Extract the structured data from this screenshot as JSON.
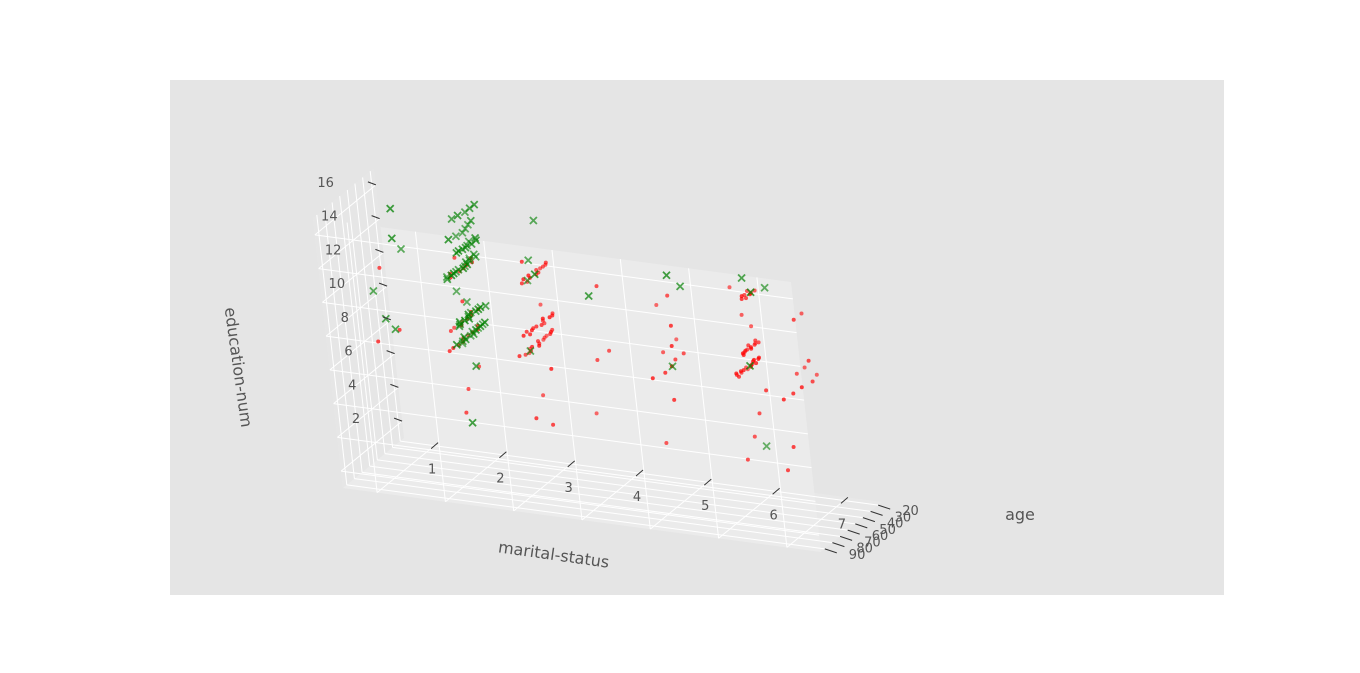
{
  "chart_data": {
    "type": "scatter",
    "projection": "3d",
    "style": "ggplot",
    "grid": true,
    "legend": "none",
    "axes": {
      "x": {
        "label": "marital-status",
        "ticks": [
          "1",
          "2",
          "3",
          "4",
          "5",
          "6",
          "7"
        ],
        "range": [
          0.5,
          7.5
        ]
      },
      "y": {
        "label": "age",
        "ticks": [
          "20",
          "30",
          "40",
          "50",
          "60",
          "70",
          "80",
          "90"
        ],
        "range": [
          15,
          95
        ]
      },
      "z": {
        "label": "education-num",
        "ticks": [
          "2",
          "4",
          "6",
          "8",
          "10",
          "12",
          "14",
          "16"
        ],
        "range": [
          1,
          17
        ]
      }
    },
    "series": [
      {
        "marker": "o",
        "color": "#ff0000",
        "points": [
          [
            2,
            30,
            9
          ],
          [
            2,
            35,
            9
          ],
          [
            2,
            40,
            9
          ],
          [
            2,
            45,
            9
          ],
          [
            2,
            50,
            9
          ],
          [
            2,
            55,
            9
          ],
          [
            2,
            60,
            9
          ],
          [
            2,
            65,
            9
          ],
          [
            2,
            70,
            9
          ],
          [
            2,
            30,
            10
          ],
          [
            2,
            35,
            10
          ],
          [
            2,
            40,
            10
          ],
          [
            2,
            45,
            10
          ],
          [
            2,
            50,
            10
          ],
          [
            2,
            55,
            10
          ],
          [
            2,
            60,
            10
          ],
          [
            2,
            65,
            10
          ],
          [
            2,
            30,
            13
          ],
          [
            2,
            35,
            13
          ],
          [
            2,
            40,
            13
          ],
          [
            2,
            45,
            13
          ],
          [
            2,
            50,
            13
          ],
          [
            2,
            55,
            13
          ],
          [
            2,
            60,
            13
          ],
          [
            2,
            40,
            7
          ],
          [
            2,
            50,
            6
          ],
          [
            2,
            60,
            5
          ],
          [
            2,
            45,
            11
          ],
          [
            2,
            55,
            14
          ],
          [
            3,
            22,
            9
          ],
          [
            3,
            25,
            9
          ],
          [
            3,
            28,
            9
          ],
          [
            3,
            31,
            9
          ],
          [
            3,
            34,
            9
          ],
          [
            3,
            37,
            9
          ],
          [
            3,
            40,
            9
          ],
          [
            3,
            43,
            9
          ],
          [
            3,
            46,
            9
          ],
          [
            3,
            49,
            9
          ],
          [
            3,
            52,
            9
          ],
          [
            3,
            55,
            9
          ],
          [
            3,
            58,
            9
          ],
          [
            3,
            61,
            9
          ],
          [
            3,
            64,
            9
          ],
          [
            3,
            22,
            10
          ],
          [
            3,
            25,
            10
          ],
          [
            3,
            28,
            10
          ],
          [
            3,
            31,
            10
          ],
          [
            3,
            34,
            10
          ],
          [
            3,
            37,
            10
          ],
          [
            3,
            40,
            10
          ],
          [
            3,
            43,
            10
          ],
          [
            3,
            46,
            10
          ],
          [
            3,
            49,
            10
          ],
          [
            3,
            52,
            10
          ],
          [
            3,
            55,
            10
          ],
          [
            3,
            58,
            10
          ],
          [
            3,
            22,
            13
          ],
          [
            3,
            25,
            13
          ],
          [
            3,
            28,
            13
          ],
          [
            3,
            31,
            13
          ],
          [
            3,
            34,
            13
          ],
          [
            3,
            37,
            13
          ],
          [
            3,
            40,
            13
          ],
          [
            3,
            43,
            13
          ],
          [
            3,
            46,
            13
          ],
          [
            3,
            49,
            13
          ],
          [
            3,
            52,
            13
          ],
          [
            3,
            55,
            13
          ],
          [
            3,
            30,
            7
          ],
          [
            3,
            45,
            6
          ],
          [
            3,
            55,
            5
          ],
          [
            3,
            35,
            11
          ],
          [
            3,
            48,
            14
          ],
          [
            3,
            38,
            4
          ],
          [
            5,
            30,
            9
          ],
          [
            5,
            40,
            9
          ],
          [
            5,
            50,
            9
          ],
          [
            5,
            60,
            9
          ],
          [
            5,
            70,
            9
          ],
          [
            5,
            35,
            10
          ],
          [
            5,
            45,
            10
          ],
          [
            5,
            55,
            10
          ],
          [
            5,
            45,
            13
          ],
          [
            5,
            60,
            13
          ],
          [
            5,
            50,
            7
          ],
          [
            5,
            65,
            5
          ],
          [
            5,
            40,
            11
          ],
          [
            6,
            22,
            9
          ],
          [
            6,
            24,
            9
          ],
          [
            6,
            26,
            9
          ],
          [
            6,
            28,
            9
          ],
          [
            6,
            30,
            9
          ],
          [
            6,
            32,
            9
          ],
          [
            6,
            34,
            9
          ],
          [
            6,
            36,
            9
          ],
          [
            6,
            38,
            9
          ],
          [
            6,
            40,
            9
          ],
          [
            6,
            42,
            9
          ],
          [
            6,
            44,
            9
          ],
          [
            6,
            46,
            9
          ],
          [
            6,
            48,
            9
          ],
          [
            6,
            50,
            9
          ],
          [
            6,
            52,
            9
          ],
          [
            6,
            22,
            10
          ],
          [
            6,
            24,
            10
          ],
          [
            6,
            26,
            10
          ],
          [
            6,
            28,
            10
          ],
          [
            6,
            30,
            10
          ],
          [
            6,
            32,
            10
          ],
          [
            6,
            34,
            10
          ],
          [
            6,
            36,
            10
          ],
          [
            6,
            38,
            10
          ],
          [
            6,
            40,
            10
          ],
          [
            6,
            42,
            10
          ],
          [
            6,
            44,
            10
          ],
          [
            6,
            22,
            13
          ],
          [
            6,
            24,
            13
          ],
          [
            6,
            26,
            13
          ],
          [
            6,
            28,
            13
          ],
          [
            6,
            30,
            13
          ],
          [
            6,
            32,
            13
          ],
          [
            6,
            34,
            13
          ],
          [
            6,
            36,
            13
          ],
          [
            6,
            20,
            7
          ],
          [
            6,
            30,
            6
          ],
          [
            6,
            40,
            5
          ],
          [
            6,
            50,
            4
          ],
          [
            6,
            26,
            11
          ],
          [
            6,
            35,
            12
          ],
          [
            6,
            45,
            14
          ],
          [
            7,
            35,
            9
          ],
          [
            7,
            45,
            9
          ],
          [
            7,
            55,
            9
          ],
          [
            7,
            65,
            9
          ],
          [
            7,
            75,
            9
          ],
          [
            7,
            40,
            10
          ],
          [
            7,
            50,
            10
          ],
          [
            7,
            60,
            10
          ],
          [
            7,
            45,
            13
          ],
          [
            7,
            55,
            13
          ],
          [
            7,
            70,
            6
          ],
          [
            7,
            80,
            5
          ],
          [
            1,
            50,
            9
          ],
          [
            1,
            70,
            9
          ],
          [
            1,
            60,
            13
          ],
          [
            4,
            40,
            9
          ],
          [
            4,
            55,
            9
          ],
          [
            4,
            45,
            13
          ],
          [
            4,
            60,
            6
          ]
        ]
      },
      {
        "marker": "x",
        "color": "#008000",
        "points": [
          [
            1,
            30,
            13
          ],
          [
            1,
            40,
            14
          ],
          [
            1,
            50,
            9
          ],
          [
            1,
            60,
            10
          ],
          [
            1,
            45,
            16
          ],
          [
            2,
            24,
            9
          ],
          [
            2,
            27,
            9
          ],
          [
            2,
            30,
            9
          ],
          [
            2,
            33,
            9
          ],
          [
            2,
            36,
            9
          ],
          [
            2,
            39,
            9
          ],
          [
            2,
            42,
            9
          ],
          [
            2,
            45,
            9
          ],
          [
            2,
            48,
            9
          ],
          [
            2,
            51,
            9
          ],
          [
            2,
            54,
            9
          ],
          [
            2,
            57,
            9
          ],
          [
            2,
            60,
            9
          ],
          [
            2,
            24,
            10
          ],
          [
            2,
            27,
            10
          ],
          [
            2,
            30,
            10
          ],
          [
            2,
            33,
            10
          ],
          [
            2,
            36,
            10
          ],
          [
            2,
            39,
            10
          ],
          [
            2,
            42,
            10
          ],
          [
            2,
            45,
            10
          ],
          [
            2,
            48,
            10
          ],
          [
            2,
            51,
            10
          ],
          [
            2,
            54,
            10
          ],
          [
            2,
            57,
            10
          ],
          [
            2,
            24,
            13
          ],
          [
            2,
            27,
            13
          ],
          [
            2,
            30,
            13
          ],
          [
            2,
            33,
            13
          ],
          [
            2,
            36,
            13
          ],
          [
            2,
            39,
            13
          ],
          [
            2,
            42,
            13
          ],
          [
            2,
            45,
            13
          ],
          [
            2,
            48,
            13
          ],
          [
            2,
            51,
            13
          ],
          [
            2,
            54,
            13
          ],
          [
            2,
            57,
            13
          ],
          [
            2,
            60,
            13
          ],
          [
            2,
            63,
            13
          ],
          [
            2,
            24,
            14
          ],
          [
            2,
            27,
            14
          ],
          [
            2,
            30,
            14
          ],
          [
            2,
            33,
            14
          ],
          [
            2,
            36,
            14
          ],
          [
            2,
            39,
            14
          ],
          [
            2,
            42,
            14
          ],
          [
            2,
            45,
            14
          ],
          [
            2,
            48,
            14
          ],
          [
            2,
            24,
            15
          ],
          [
            2,
            30,
            15
          ],
          [
            2,
            36,
            15
          ],
          [
            2,
            42,
            15
          ],
          [
            2,
            48,
            15
          ],
          [
            2,
            54,
            15
          ],
          [
            2,
            24,
            16
          ],
          [
            2,
            30,
            16
          ],
          [
            2,
            36,
            16
          ],
          [
            2,
            42,
            16
          ],
          [
            2,
            48,
            16
          ],
          [
            2,
            45,
            11
          ],
          [
            2,
            55,
            12
          ],
          [
            2,
            40,
            7
          ],
          [
            2,
            50,
            4
          ],
          [
            3,
            40,
            13
          ],
          [
            3,
            50,
            13
          ],
          [
            3,
            45,
            14
          ],
          [
            3,
            55,
            9
          ],
          [
            3,
            35,
            16
          ],
          [
            5,
            30,
            13
          ],
          [
            5,
            40,
            14
          ],
          [
            5,
            50,
            9
          ],
          [
            6,
            25,
            13
          ],
          [
            6,
            30,
            14
          ],
          [
            6,
            35,
            9
          ],
          [
            6,
            28,
            4
          ],
          [
            7,
            85,
            16
          ],
          [
            4,
            60,
            13
          ],
          [
            1,
            70,
            12
          ]
        ]
      }
    ]
  }
}
